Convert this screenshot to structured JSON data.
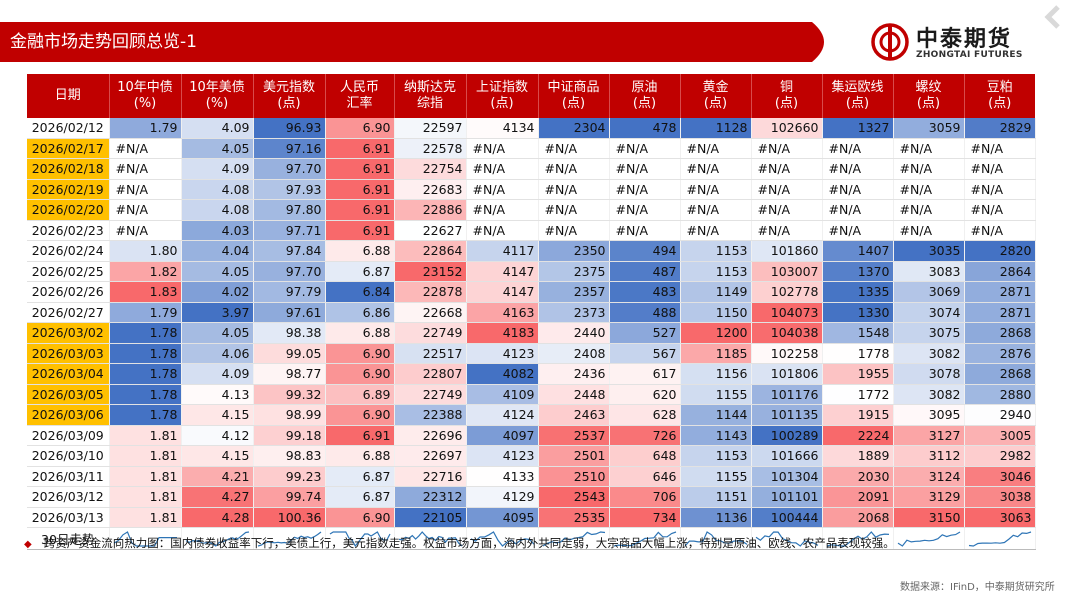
{
  "header": {
    "title": "金融市场走势回顾总览-1"
  },
  "logo": {
    "name_cn": "中泰期货",
    "name_en": "ZHONGTAI FUTURES"
  },
  "table": {
    "columns": [
      {
        "label": "日期"
      },
      {
        "label": "10年中债",
        "unit": "(%)"
      },
      {
        "label": "10年美债",
        "unit": "(%)"
      },
      {
        "label": "美元指数",
        "unit": "(点)"
      },
      {
        "label": "人民币",
        "unit": "汇率"
      },
      {
        "label": "纳斯达克",
        "unit": "综指"
      },
      {
        "label": "上证指数",
        "unit": "(点)"
      },
      {
        "label": "中证商品",
        "unit": "(点)"
      },
      {
        "label": "原油",
        "unit": "(点)"
      },
      {
        "label": "黄金",
        "unit": "(点)"
      },
      {
        "label": "铜",
        "unit": "(点)"
      },
      {
        "label": "集运欧线",
        "unit": "(点)"
      },
      {
        "label": "螺纹",
        "unit": "(点)"
      },
      {
        "label": "豆粕",
        "unit": "(点)"
      }
    ],
    "rows": [
      {
        "date": "2026/02/12",
        "highlight": false,
        "values": [
          "1.79",
          "4.09",
          "96.93",
          "6.90",
          "22597",
          "4134",
          "2304",
          "478",
          "1128",
          "102660",
          "1327",
          "3059",
          "2829"
        ]
      },
      {
        "date": "2026/02/17",
        "highlight": true,
        "values": [
          "#N/A",
          "4.05",
          "97.16",
          "6.91",
          "22578",
          "#N/A",
          "#N/A",
          "#N/A",
          "#N/A",
          "#N/A",
          "#N/A",
          "#N/A",
          "#N/A"
        ]
      },
      {
        "date": "2026/02/18",
        "highlight": true,
        "values": [
          "#N/A",
          "4.09",
          "97.70",
          "6.91",
          "22754",
          "#N/A",
          "#N/A",
          "#N/A",
          "#N/A",
          "#N/A",
          "#N/A",
          "#N/A",
          "#N/A"
        ]
      },
      {
        "date": "2026/02/19",
        "highlight": true,
        "values": [
          "#N/A",
          "4.08",
          "97.93",
          "6.91",
          "22683",
          "#N/A",
          "#N/A",
          "#N/A",
          "#N/A",
          "#N/A",
          "#N/A",
          "#N/A",
          "#N/A"
        ]
      },
      {
        "date": "2026/02/20",
        "highlight": true,
        "values": [
          "#N/A",
          "4.08",
          "97.80",
          "6.91",
          "22886",
          "#N/A",
          "#N/A",
          "#N/A",
          "#N/A",
          "#N/A",
          "#N/A",
          "#N/A",
          "#N/A"
        ]
      },
      {
        "date": "2026/02/23",
        "highlight": false,
        "values": [
          "#N/A",
          "4.03",
          "97.71",
          "6.91",
          "22627",
          "#N/A",
          "#N/A",
          "#N/A",
          "#N/A",
          "#N/A",
          "#N/A",
          "#N/A",
          "#N/A"
        ]
      },
      {
        "date": "2026/02/24",
        "highlight": false,
        "values": [
          "1.80",
          "4.04",
          "97.84",
          "6.88",
          "22864",
          "4117",
          "2350",
          "494",
          "1153",
          "101860",
          "1407",
          "3035",
          "2820"
        ]
      },
      {
        "date": "2026/02/25",
        "highlight": false,
        "values": [
          "1.82",
          "4.05",
          "97.70",
          "6.87",
          "23152",
          "4147",
          "2375",
          "487",
          "1153",
          "103007",
          "1370",
          "3083",
          "2864"
        ]
      },
      {
        "date": "2026/02/26",
        "highlight": false,
        "values": [
          "1.83",
          "4.02",
          "97.79",
          "6.84",
          "22878",
          "4147",
          "2357",
          "483",
          "1149",
          "102778",
          "1335",
          "3069",
          "2871"
        ]
      },
      {
        "date": "2026/02/27",
        "highlight": false,
        "values": [
          "1.79",
          "3.97",
          "97.61",
          "6.86",
          "22668",
          "4163",
          "2373",
          "488",
          "1150",
          "104073",
          "1330",
          "3074",
          "2871"
        ]
      },
      {
        "date": "2026/03/02",
        "highlight": true,
        "values": [
          "1.78",
          "4.05",
          "98.38",
          "6.88",
          "22749",
          "4183",
          "2440",
          "527",
          "1200",
          "104038",
          "1548",
          "3075",
          "2868"
        ]
      },
      {
        "date": "2026/03/03",
        "highlight": true,
        "values": [
          "1.78",
          "4.06",
          "99.05",
          "6.90",
          "22517",
          "4123",
          "2408",
          "567",
          "1185",
          "102258",
          "1778",
          "3082",
          "2876"
        ]
      },
      {
        "date": "2026/03/04",
        "highlight": true,
        "values": [
          "1.78",
          "4.09",
          "98.77",
          "6.90",
          "22807",
          "4082",
          "2436",
          "617",
          "1156",
          "101806",
          "1955",
          "3078",
          "2868"
        ]
      },
      {
        "date": "2026/03/05",
        "highlight": true,
        "values": [
          "1.78",
          "4.13",
          "99.32",
          "6.89",
          "22749",
          "4109",
          "2448",
          "620",
          "1155",
          "101176",
          "1772",
          "3082",
          "2880"
        ]
      },
      {
        "date": "2026/03/06",
        "highlight": true,
        "values": [
          "1.78",
          "4.15",
          "98.99",
          "6.90",
          "22388",
          "4124",
          "2463",
          "628",
          "1144",
          "101135",
          "1915",
          "3095",
          "2940"
        ]
      },
      {
        "date": "2026/03/09",
        "highlight": false,
        "values": [
          "1.81",
          "4.12",
          "99.18",
          "6.91",
          "22696",
          "4097",
          "2537",
          "726",
          "1143",
          "100289",
          "2224",
          "3127",
          "3005"
        ]
      },
      {
        "date": "2026/03/10",
        "highlight": false,
        "values": [
          "1.81",
          "4.15",
          "98.83",
          "6.88",
          "22697",
          "4123",
          "2501",
          "648",
          "1153",
          "101666",
          "1889",
          "3112",
          "2982"
        ]
      },
      {
        "date": "2026/03/11",
        "highlight": false,
        "values": [
          "1.81",
          "4.21",
          "99.23",
          "6.87",
          "22716",
          "4133",
          "2510",
          "646",
          "1155",
          "101304",
          "2030",
          "3124",
          "3046"
        ]
      },
      {
        "date": "2026/03/12",
        "highlight": false,
        "values": [
          "1.81",
          "4.27",
          "99.74",
          "6.87",
          "22312",
          "4129",
          "2543",
          "706",
          "1151",
          "101101",
          "2091",
          "3129",
          "3038"
        ]
      },
      {
        "date": "2026/03/13",
        "highlight": false,
        "values": [
          "1.81",
          "4.28",
          "100.36",
          "6.90",
          "22105",
          "4095",
          "2535",
          "734",
          "1136",
          "100444",
          "2068",
          "3150",
          "3063"
        ]
      }
    ],
    "trend_label": "30日走势",
    "heat_colors": {
      "low": "#4472c4",
      "mid": "#ffffff",
      "high": "#f8696b"
    }
  },
  "footer": {
    "note": "跨资产资金流向热力图：国内债券收益率下行，美债上行，美元指数走强。权益市场方面，海内外共同走弱，大宗商品大幅上涨，特别是原油、欧线、农产品表现较强。",
    "source": "数据来源：IFinD，中泰期货研究所"
  },
  "colors": {
    "brand_red": "#c00000",
    "date_highlight": "#ffc000"
  }
}
